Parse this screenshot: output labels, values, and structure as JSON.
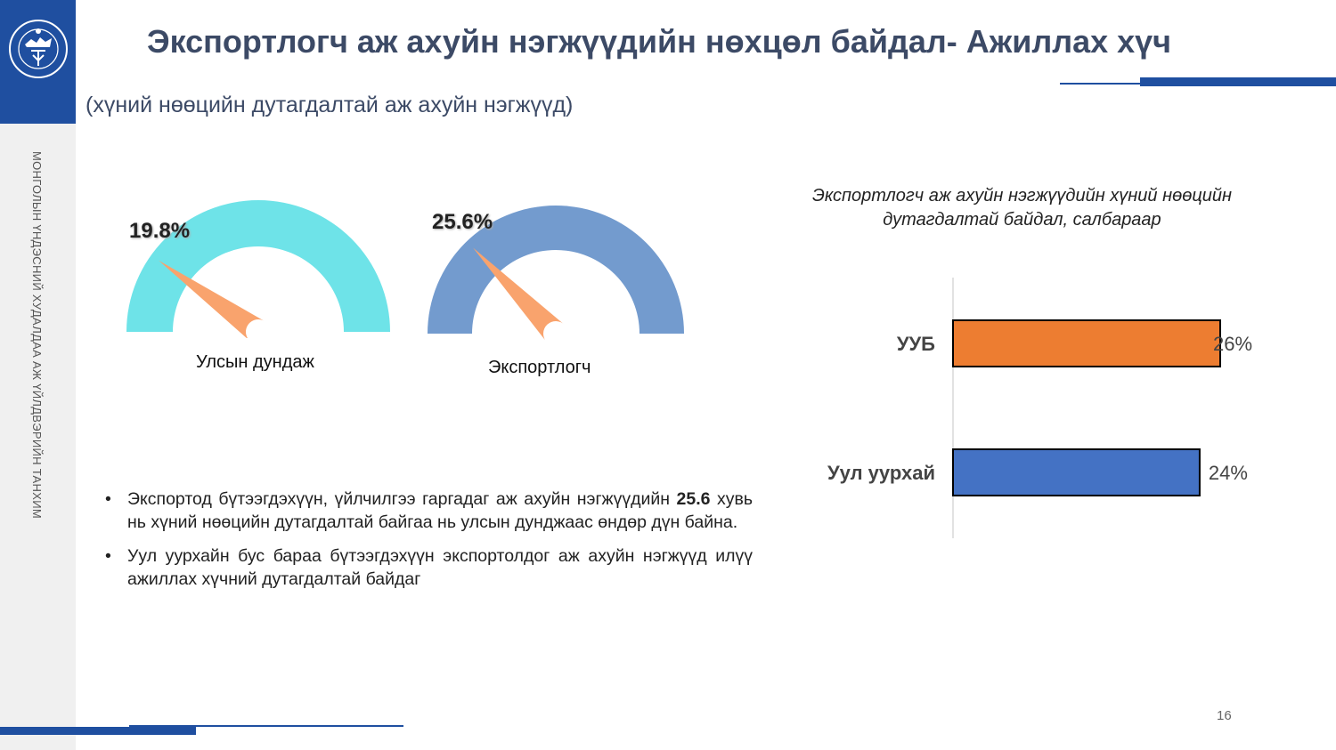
{
  "header": {
    "title": "Экспортлогч аж ахуйн нэгжүүдийн нөхцөл байдал- Ажиллах хүч",
    "subtitle": "(хүний нөөцийн дутагдалтай аж ахуйн нэгжүүд)"
  },
  "sidebar": {
    "vertical_text": "МОНГОЛЫН ҮНДЭСНИЙ ХУДАЛДАА АЖ ҮЙЛДВЭРИЙН ТАНХИМ",
    "logo_icon": "chamber-emblem-icon"
  },
  "gauges": [
    {
      "value_label": "19.8%",
      "value": 19.8,
      "caption": "Улсын дундаж",
      "color": "#6ee3e8"
    },
    {
      "value_label": "25.6%",
      "value": 25.6,
      "caption": "Экспортлогч",
      "color": "#739bce"
    }
  ],
  "needle_color": "#f9a36d",
  "bullets": [
    {
      "prefix": "Экспортод бүтээгдэхүүн, үйлчилгээ гаргадаг аж ахуйн нэгжүүдийн ",
      "bold": "25.6",
      "suffix": " хувь нь хүний нөөцийн дутагдалтай байгаа нь улсын дунджаас өндөр дүн байна."
    },
    {
      "prefix": "Уул уурхайн бус бараа бүтээгдэхүүн экспортолдог аж ахуйн нэгжүүд илүү ажиллах хүчний дутагдалтай байдаг",
      "bold": "",
      "suffix": ""
    }
  ],
  "chart_data": {
    "type": "bar",
    "orientation": "horizontal",
    "title": "Экспортлогч аж ахуйн нэгжүүдийн хүний нөөцийн дутагдалтай байдал, салбараар",
    "categories": [
      "УУБ",
      "Уул уурхай"
    ],
    "values": [
      26,
      24
    ],
    "value_labels": [
      "26%",
      "24%"
    ],
    "colors": [
      "#ed7d31",
      "#4472c4"
    ],
    "xlim": [
      0,
      30
    ]
  },
  "footer": {
    "page_number": "16"
  }
}
